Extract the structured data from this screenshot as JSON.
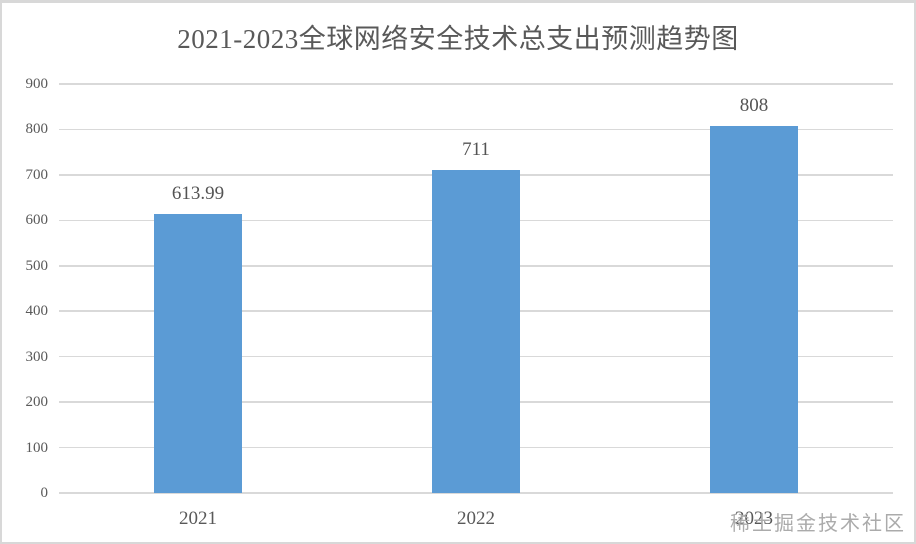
{
  "page": {
    "background": "#ffffff",
    "frame_border_color": "#d8d8d8"
  },
  "chart_data": {
    "type": "bar",
    "title": "2021-2023全球网络安全技术总支出预测趋势图",
    "categories": [
      "2021",
      "2022",
      "2023"
    ],
    "values": [
      613.99,
      711,
      808
    ],
    "value_labels": [
      "613.99",
      "711",
      "808"
    ],
    "xlabel": "",
    "ylabel": "",
    "ylim": [
      0,
      900
    ],
    "ytick_step": 100,
    "yticks": [
      900,
      800,
      700,
      600,
      500,
      400,
      300,
      200,
      100,
      0
    ],
    "grid": true,
    "legend": null,
    "bar_color": "#5b9bd5",
    "gridline_color": "#d9d9d9",
    "axis_text_color": "#595959",
    "value_label_color": "#545454",
    "title_color": "#595959"
  },
  "watermark": {
    "text": "稀土掘金技术社区",
    "color": "#ababab"
  }
}
